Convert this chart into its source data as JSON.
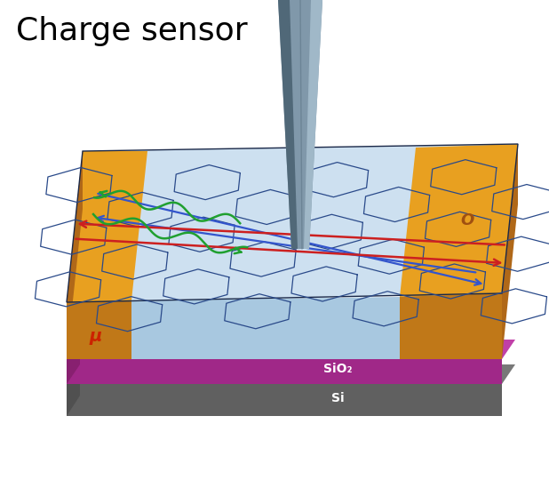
{
  "title": "Charge sensor",
  "title_fontsize": 26,
  "bg_color": "#ffffff",
  "colors": {
    "graphene_top": "#cde0f0",
    "graphene_front": "#a8c8e0",
    "graphene_left": "#90b0cc",
    "gold_top": "#e8a020",
    "gold_front": "#c07818",
    "gold_left": "#a06010",
    "sio2_top": "#c040a8",
    "sio2_front": "#a02888",
    "sio2_left": "#882070",
    "si_top": "#787878",
    "si_front": "#606060",
    "si_left": "#505050",
    "probe_main": "#8098aa",
    "probe_dark": "#506878",
    "probe_light": "#a0b8c8",
    "hex_line": "#2a4a8a",
    "arrow_blue": "#3355cc",
    "arrow_red": "#cc2020",
    "arrow_green": "#20a030"
  },
  "label_o": "O",
  "label_mu": "μ",
  "label_sio2": "SiO₂",
  "label_si": "Si"
}
